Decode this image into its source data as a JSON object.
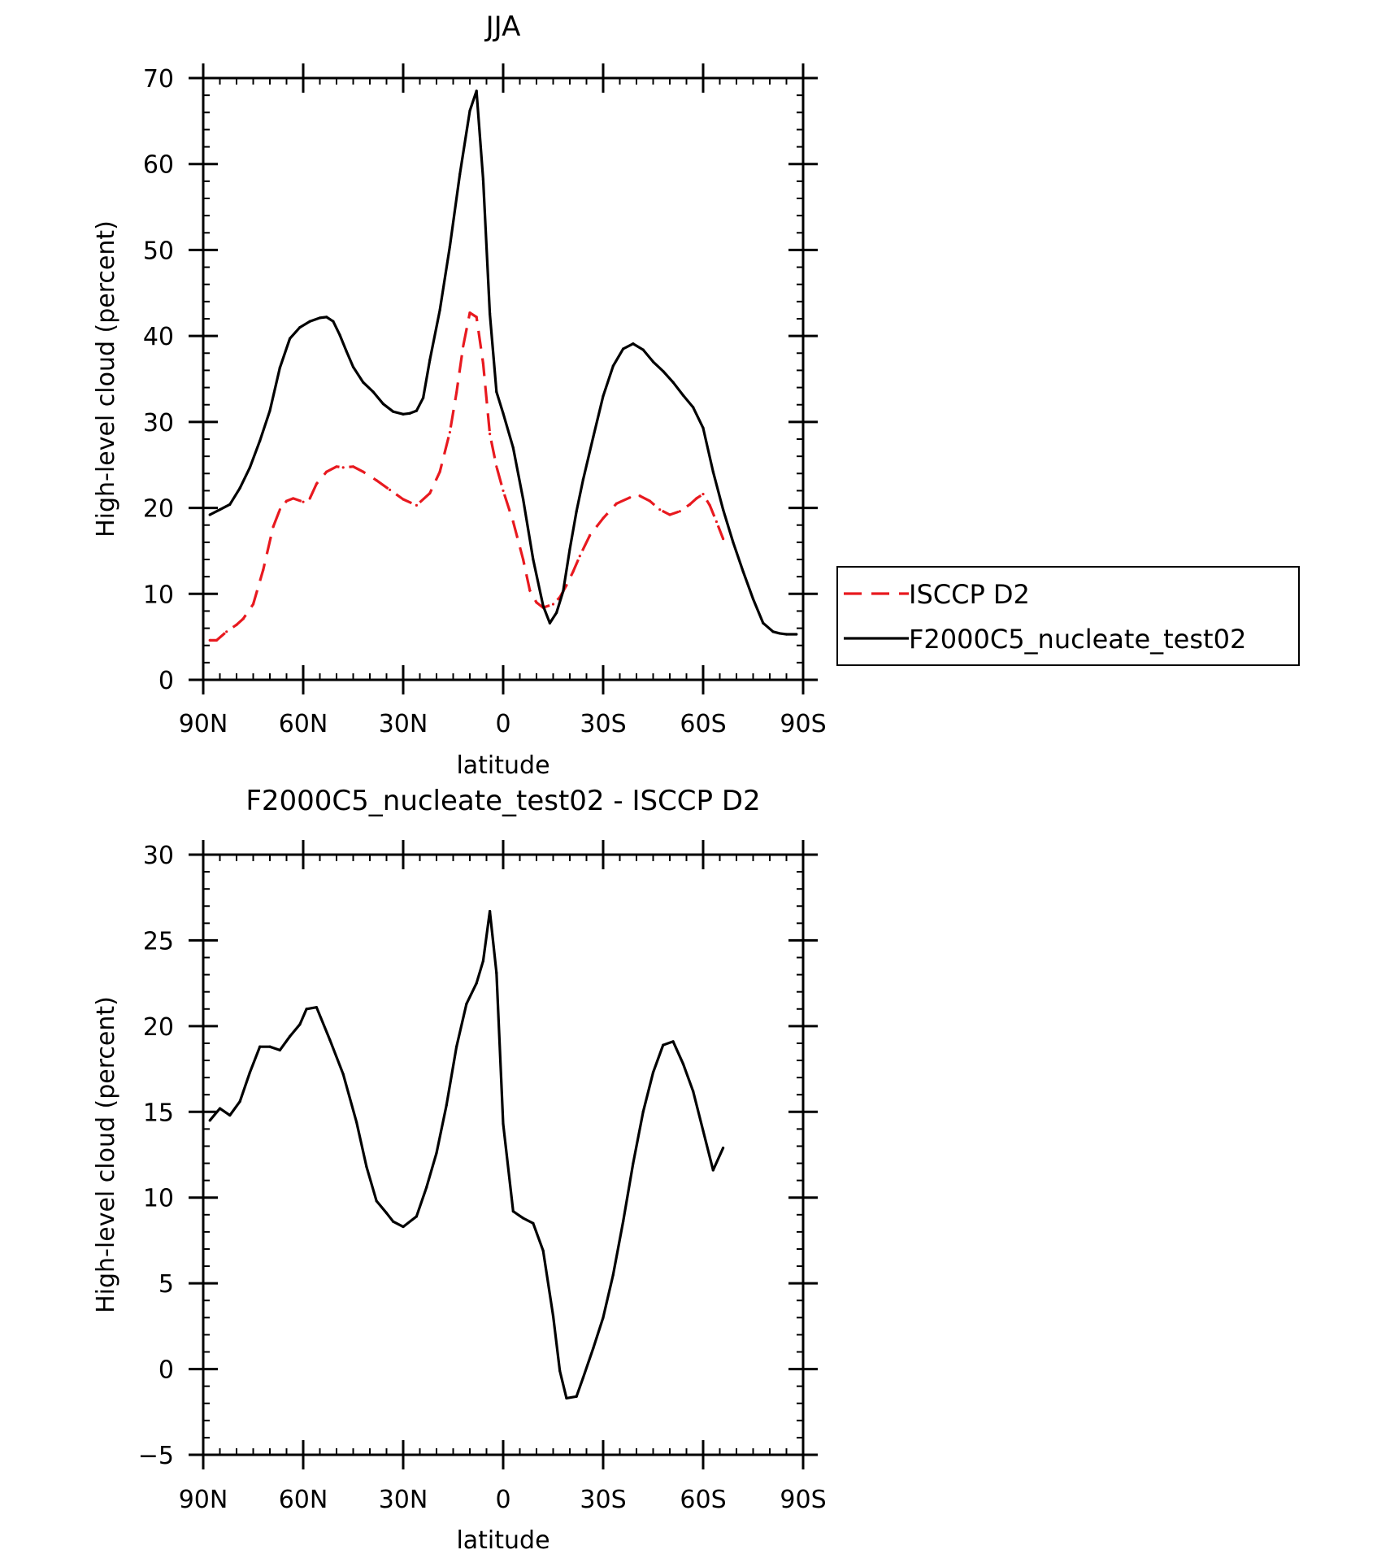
{
  "chart_data": [
    {
      "type": "line",
      "title": "JJA",
      "xlabel": "latitude",
      "ylabel": "High-level cloud (percent)",
      "xlim": [
        -90,
        90
      ],
      "ylim": [
        0,
        70
      ],
      "x_ticks": [
        -90,
        -60,
        -30,
        0,
        30,
        60,
        90
      ],
      "x_tick_labels": [
        "90N",
        "60N",
        "30N",
        "0",
        "30S",
        "60S",
        "90S"
      ],
      "y_ticks": [
        0,
        10,
        20,
        30,
        40,
        50,
        60,
        70
      ],
      "y_tick_labels": [
        "0",
        "10",
        "20",
        "30",
        "40",
        "50",
        "60",
        "70"
      ],
      "legend": {
        "placement": "right",
        "entries": [
          "ISCCP D2",
          "F2000C5_nucleate_test02"
        ]
      },
      "series": [
        {
          "name": "ISCCP D2",
          "color": "#e8191f",
          "dash": "dashed",
          "x": [
            -88,
            -86,
            -83,
            -80,
            -78,
            -75,
            -72,
            -69,
            -67,
            -65,
            -63,
            -60,
            -58,
            -56,
            -53,
            -50,
            -48,
            -45,
            -42,
            -38,
            -34,
            -30,
            -26,
            -22,
            -19,
            -16,
            -14,
            -12,
            -10,
            -8,
            -6,
            -4,
            -2,
            0,
            3,
            6,
            8,
            10,
            12,
            15,
            17,
            19,
            21,
            23,
            26,
            30,
            34,
            38,
            41,
            44,
            47,
            50,
            53,
            56,
            58,
            60,
            62,
            64,
            66
          ],
          "values": [
            4.6,
            4.6,
            5.6,
            6.4,
            7.1,
            8.8,
            12.8,
            17.8,
            19.8,
            20.8,
            21.1,
            20.7,
            21.1,
            22.8,
            24.2,
            24.8,
            24.7,
            24.8,
            24.2,
            23.2,
            22.1,
            21.0,
            20.3,
            21.7,
            24.2,
            28.8,
            33.4,
            38.8,
            42.7,
            42.2,
            36.8,
            28.6,
            24.8,
            22.0,
            18.4,
            14.0,
            10.4,
            9.0,
            8.4,
            8.8,
            9.6,
            11.0,
            12.6,
            14.4,
            16.8,
            18.8,
            20.5,
            21.2,
            21.4,
            20.8,
            19.8,
            19.2,
            19.6,
            20.4,
            21.1,
            21.6,
            20.3,
            18.4,
            16.4
          ]
        },
        {
          "name": "F2000C5_nucleate_test02",
          "color": "#000000",
          "dash": "solid",
          "x": [
            -88,
            -85,
            -82,
            -79,
            -76,
            -73,
            -70,
            -67,
            -64,
            -61,
            -58,
            -55,
            -53,
            -51,
            -49,
            -47,
            -45,
            -42,
            -39,
            -36,
            -33,
            -30,
            -28,
            -26,
            -24,
            -22,
            -19,
            -16,
            -13,
            -10,
            -8,
            -6,
            -4,
            -2,
            0,
            3,
            6,
            9,
            12,
            14,
            16,
            18,
            20,
            22,
            24,
            27,
            30,
            33,
            36,
            39,
            42,
            45,
            48,
            51,
            54,
            57,
            60,
            63,
            66,
            69,
            72,
            75,
            78,
            81,
            83,
            85,
            88
          ],
          "values": [
            19.2,
            19.8,
            20.4,
            22.3,
            24.7,
            27.8,
            31.3,
            36.3,
            39.7,
            41.0,
            41.7,
            42.1,
            42.2,
            41.7,
            40.1,
            38.2,
            36.4,
            34.6,
            33.5,
            32.1,
            31.2,
            30.9,
            31.0,
            31.3,
            32.8,
            37.2,
            43.0,
            50.4,
            58.8,
            66.2,
            68.5,
            58.2,
            42.6,
            33.5,
            31.0,
            27.0,
            21.0,
            14.0,
            8.6,
            6.6,
            7.8,
            10.3,
            15.2,
            19.6,
            23.3,
            28.2,
            33.0,
            36.5,
            38.5,
            39.1,
            38.4,
            37.0,
            35.9,
            34.6,
            33.1,
            31.7,
            29.3,
            24.2,
            19.8,
            16.0,
            12.6,
            9.4,
            6.6,
            5.6,
            5.4,
            5.3,
            5.3
          ]
        }
      ]
    },
    {
      "type": "line",
      "title": "F2000C5_nucleate_test02 - ISCCP D2",
      "xlabel": "latitude",
      "ylabel": "High-level cloud (percent)",
      "xlim": [
        -90,
        90
      ],
      "ylim": [
        -5,
        30
      ],
      "x_ticks": [
        -90,
        -60,
        -30,
        0,
        30,
        60,
        90
      ],
      "x_tick_labels": [
        "90N",
        "60N",
        "30N",
        "0",
        "30S",
        "60S",
        "90S"
      ],
      "y_ticks": [
        -5,
        0,
        5,
        10,
        15,
        20,
        25,
        30
      ],
      "y_tick_labels": [
        "−5",
        "0",
        "5",
        "10",
        "15",
        "20",
        "25",
        "30"
      ],
      "series": [
        {
          "color": "#000000",
          "dash": "solid",
          "x": [
            -88,
            -85,
            -82,
            -79,
            -76,
            -73,
            -70,
            -67,
            -64,
            -61,
            -59,
            -56,
            -52,
            -48,
            -44,
            -41,
            -38,
            -35,
            -33,
            -30,
            -26,
            -23,
            -20,
            -17,
            -14,
            -11,
            -8,
            -6,
            -4,
            -2,
            0,
            3,
            6,
            9,
            12,
            15,
            17,
            19,
            22,
            24,
            27,
            30,
            33,
            36,
            39,
            42,
            45,
            48,
            51,
            54,
            57,
            60,
            63,
            66
          ],
          "values": [
            14.5,
            15.2,
            14.8,
            15.6,
            17.3,
            18.8,
            18.8,
            18.6,
            19.4,
            20.1,
            21.0,
            21.1,
            19.2,
            17.2,
            14.4,
            11.8,
            9.8,
            9.1,
            8.6,
            8.3,
            8.9,
            10.6,
            12.6,
            15.4,
            18.8,
            21.3,
            22.5,
            23.8,
            26.7,
            23.1,
            14.3,
            9.2,
            8.8,
            8.5,
            6.9,
            3.1,
            -0.1,
            -1.7,
            -1.6,
            -0.5,
            1.2,
            3.0,
            5.5,
            8.6,
            12.0,
            15.0,
            17.3,
            18.9,
            19.1,
            17.8,
            16.2,
            13.9,
            11.6,
            12.9
          ]
        }
      ]
    }
  ]
}
